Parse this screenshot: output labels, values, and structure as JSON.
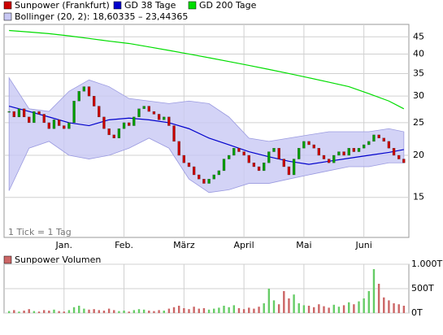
{
  "chart_data": [
    {
      "type": "candlestick-close",
      "annotation": "1 Tick = 1 Tag",
      "xlim": [
        -1,
        80
      ],
      "xticks": [
        {
          "value": 11,
          "label": "Jan."
        },
        {
          "value": 23,
          "label": "Feb."
        },
        {
          "value": 35,
          "label": "März"
        },
        {
          "value": 47,
          "label": "April"
        },
        {
          "value": 59,
          "label": "Mai"
        },
        {
          "value": 71,
          "label": "Juni"
        }
      ],
      "ylim": [
        11.4,
        49
      ],
      "yticks": [
        15,
        20,
        25,
        30,
        35,
        40,
        45
      ],
      "log_scale": true,
      "grid": true,
      "up_color": "#00a000",
      "down_color": "#cc0000",
      "series": [
        {
          "name": "Sunpower (Frankfurt)",
          "color": "#cc0000",
          "values": [
            27,
            26,
            27.5,
            26,
            25,
            27,
            26.5,
            25,
            24,
            25.5,
            24.5,
            24,
            25,
            29,
            31,
            32,
            30,
            28,
            26,
            24,
            23,
            22.5,
            24,
            25,
            24.5,
            26,
            27.5,
            28,
            27,
            26.5,
            25.5,
            26,
            24.5,
            22,
            20,
            19,
            18.5,
            17.5,
            17,
            16.5,
            17,
            17.5,
            18,
            19.5,
            20,
            21,
            20.5,
            20,
            19,
            18.5,
            18,
            19,
            20.5,
            21,
            19.5,
            18.5,
            17.5,
            19.5,
            21,
            22,
            21.5,
            21,
            20,
            19.5,
            19,
            20,
            20.5,
            20,
            21,
            20.5,
            21,
            21.5,
            22,
            23,
            22.5,
            22,
            21,
            20,
            19.5,
            19
          ]
        },
        {
          "name": "GD 38 Tage",
          "color": "#0000cc",
          "x": [
            0,
            4,
            8,
            12,
            16,
            20,
            24,
            28,
            32,
            36,
            40,
            44,
            48,
            52,
            56,
            60,
            64,
            68,
            72,
            76,
            79
          ],
          "values": [
            28,
            27,
            26,
            25,
            24.5,
            25.5,
            25.8,
            25.5,
            25,
            24,
            22.5,
            21.5,
            20.5,
            19.8,
            19.2,
            18.8,
            19.2,
            19.6,
            20,
            20.4,
            20.8
          ]
        },
        {
          "name": "GD 200 Tage",
          "color": "#00dd00",
          "x": [
            0,
            4,
            8,
            12,
            16,
            20,
            24,
            28,
            32,
            36,
            40,
            44,
            48,
            52,
            56,
            60,
            64,
            68,
            72,
            76,
            79
          ],
          "values": [
            47,
            46.5,
            46,
            45.3,
            44.5,
            43.7,
            43,
            42,
            41,
            40,
            39,
            38,
            37,
            36,
            35,
            34,
            33,
            32,
            30.5,
            29,
            27.5
          ]
        },
        {
          "name": "Bollinger (20, 2): 18,60335 – 23,44365",
          "color": "#c8c8f4",
          "x": [
            0,
            4,
            8,
            12,
            16,
            20,
            24,
            28,
            32,
            36,
            40,
            44,
            48,
            52,
            56,
            60,
            64,
            68,
            72,
            76,
            79
          ],
          "upper": [
            34,
            27.5,
            27,
            31,
            33.5,
            32,
            29.5,
            29,
            28.5,
            29,
            28.5,
            26,
            22.5,
            22,
            22.5,
            23,
            23.5,
            23.5,
            23.5,
            24,
            23.5
          ],
          "lower": [
            15.7,
            21,
            22,
            20,
            19.5,
            20,
            21,
            22.5,
            21,
            17,
            15.5,
            15.8,
            16.5,
            16.5,
            17,
            17.5,
            18,
            18.5,
            18.5,
            19,
            19
          ]
        }
      ]
    },
    {
      "type": "volume",
      "title": "Sunpower Volumen",
      "color": "#cc6666",
      "xlim": [
        -1,
        80
      ],
      "ylim": [
        0,
        1000
      ],
      "yticks": [
        {
          "value": 0,
          "label": "0T"
        },
        {
          "value": 500,
          "label": "500T"
        },
        {
          "value": 1000,
          "label": "1.000T"
        }
      ],
      "values": [
        40,
        60,
        30,
        50,
        80,
        40,
        30,
        60,
        50,
        70,
        40,
        30,
        60,
        120,
        150,
        90,
        70,
        80,
        60,
        50,
        90,
        60,
        40,
        50,
        30,
        60,
        80,
        70,
        50,
        40,
        60,
        50,
        90,
        120,
        150,
        100,
        80,
        130,
        90,
        100,
        70,
        90,
        110,
        150,
        120,
        160,
        100,
        80,
        110,
        90,
        130,
        200,
        500,
        260,
        180,
        450,
        300,
        380,
        200,
        160,
        150,
        120,
        180,
        140,
        110,
        170,
        130,
        160,
        220,
        180,
        240,
        300,
        450,
        900,
        600,
        320,
        260,
        200,
        180,
        150
      ]
    }
  ]
}
